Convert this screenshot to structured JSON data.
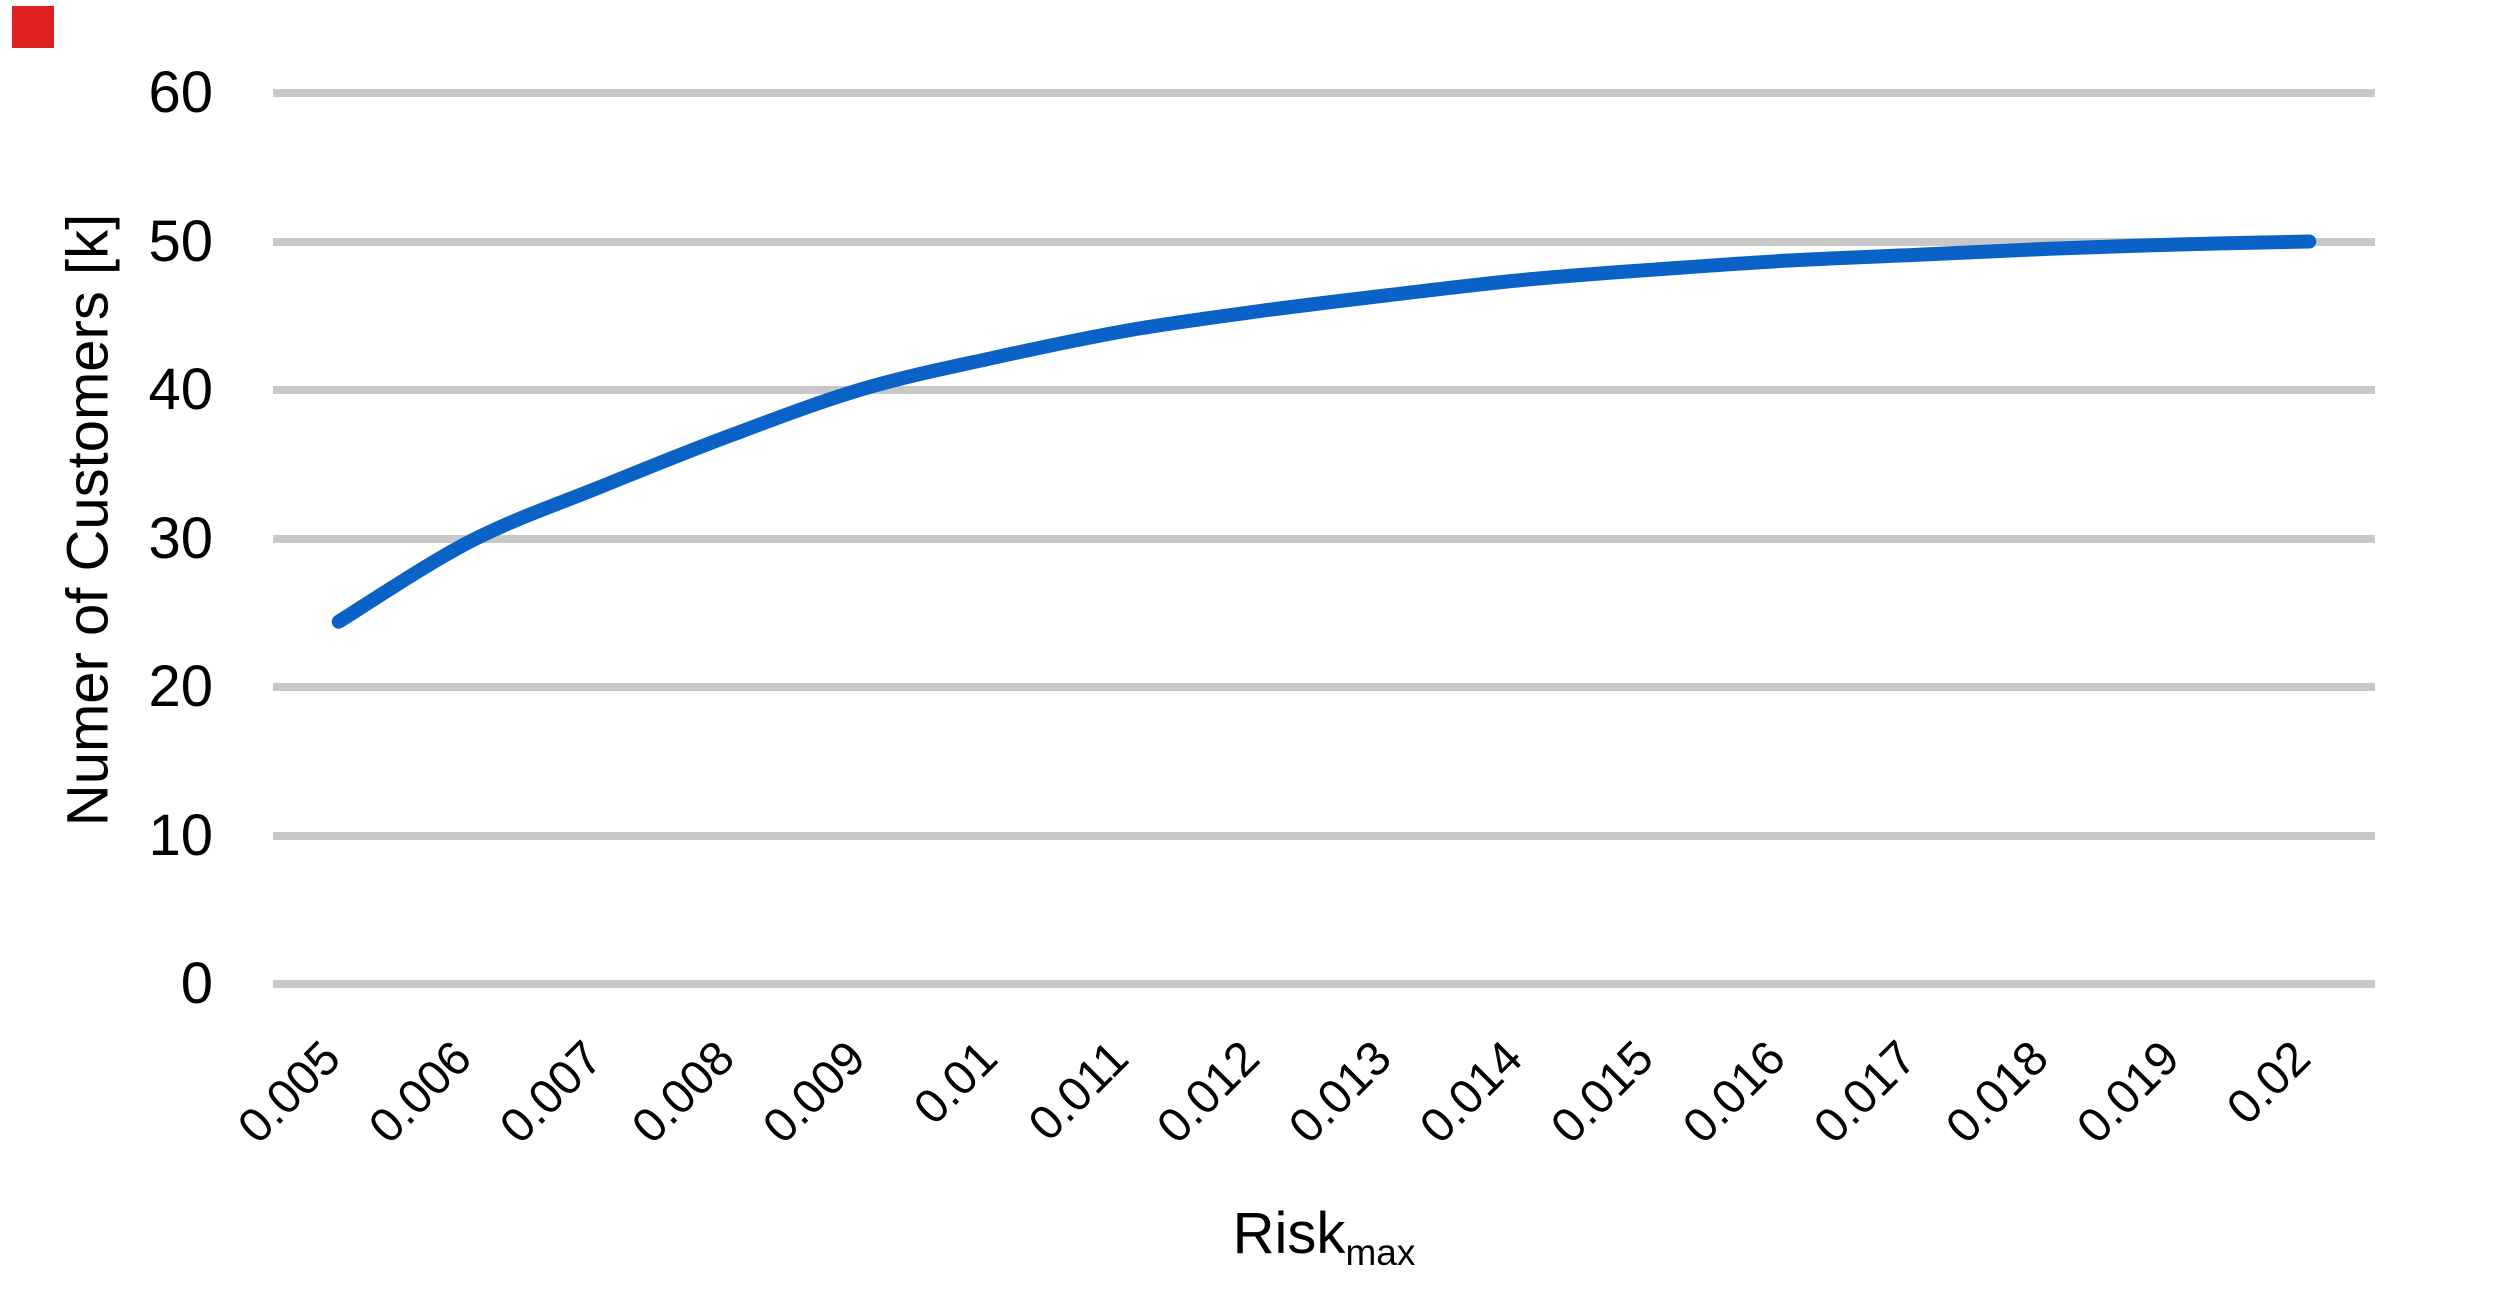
{
  "marker": {
    "name": "red-corner-square",
    "color": "#e02020"
  },
  "chart_data": {
    "type": "line",
    "title": "",
    "xlabel": "Risk",
    "xlabel_subscript": "max",
    "ylabel": "Numer of Customers [k]",
    "categories": [
      "0.005",
      "0.006",
      "0.007",
      "0.008",
      "0.009",
      "0.01",
      "0.011",
      "0.012",
      "0.013",
      "0.014",
      "0.015",
      "0.016",
      "0.017",
      "0.018",
      "0.019",
      "0.02"
    ],
    "series": [
      {
        "name": "Number of Customers",
        "values": [
          24.4,
          29.8,
          33.5,
          37.0,
          40.1,
          42.2,
          44.0,
          45.3,
          46.4,
          47.4,
          48.1,
          48.7,
          49.1,
          49.5,
          49.8,
          50.0
        ]
      }
    ],
    "ylim": [
      0,
      60
    ],
    "ytick_step": 10,
    "yticks": [
      0,
      10,
      20,
      30,
      40,
      50,
      60
    ],
    "grid": "horizontal",
    "legend": "none",
    "line_color": "#0a62c6",
    "gridline_color": "#c8c8c8",
    "text_color": "#000000",
    "background_color": "#ffffff"
  }
}
